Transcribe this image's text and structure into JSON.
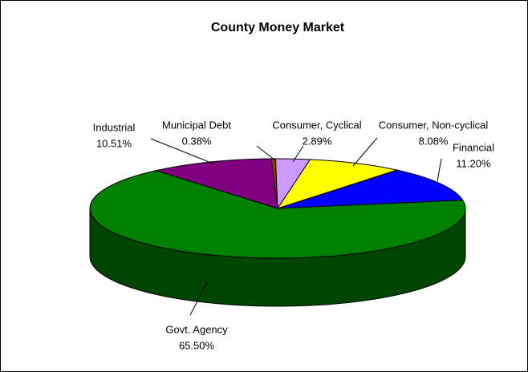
{
  "chart_data": {
    "type": "pie3d",
    "title": "County Money Market",
    "categories": [
      "Municipal Debt",
      "Consumer, Cyclical",
      "Consumer, Non-cyclical",
      "Financial",
      "Govt. Agency",
      "Industrial"
    ],
    "values": [
      0.38,
      2.89,
      8.08,
      11.2,
      65.5,
      10.51
    ],
    "value_labels": [
      "0.38%",
      "2.89%",
      "8.08%",
      "11.20%",
      "65.50%",
      "10.51%"
    ],
    "colors": [
      "#993300",
      "#cc99ff",
      "#ffff00",
      "#0000ff",
      "#008000",
      "#800080"
    ]
  }
}
